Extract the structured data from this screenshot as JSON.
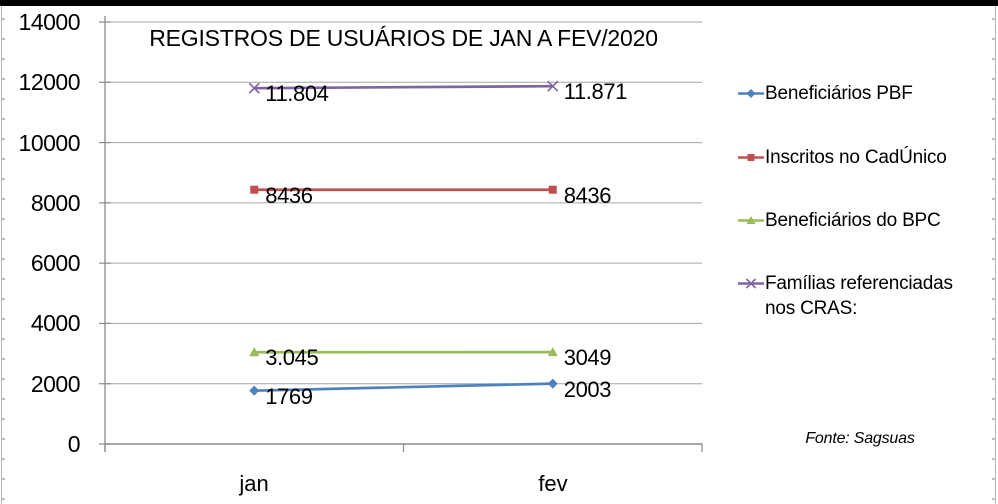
{
  "chart_data": {
    "type": "line",
    "title": "REGISTROS DE USUÁRIOS DE JAN A FEV/2020",
    "categories": [
      "jan",
      "fev"
    ],
    "series": [
      {
        "name": "Beneficiários PBF",
        "values": [
          1769,
          2003
        ],
        "labels": [
          "1769",
          "2003"
        ],
        "color": "#4F81BD",
        "marker": "diamond"
      },
      {
        "name": "Inscritos no CadÚnico",
        "values": [
          8436,
          8436
        ],
        "labels": [
          "8436",
          "8436"
        ],
        "color": "#C0504D",
        "marker": "square"
      },
      {
        "name": "Beneficiários do BPC",
        "values": [
          3045,
          3049
        ],
        "labels": [
          "3.045",
          "3049"
        ],
        "color": "#9BBB59",
        "marker": "triangle"
      },
      {
        "name": "Famílias referenciadas nos CRAS:",
        "values": [
          11804,
          11871
        ],
        "labels": [
          "11.804",
          "11.871"
        ],
        "color": "#8064A2",
        "marker": "x"
      }
    ],
    "y_ticks": [
      "14000",
      "12000",
      "10000",
      "8000",
      "6000",
      "4000",
      "2000",
      "0"
    ],
    "ylim": [
      0,
      14000
    ],
    "grid": true,
    "legend_position": "right",
    "xlabel": "",
    "ylabel": "",
    "source_note": "Fonte: Sagsuas"
  }
}
